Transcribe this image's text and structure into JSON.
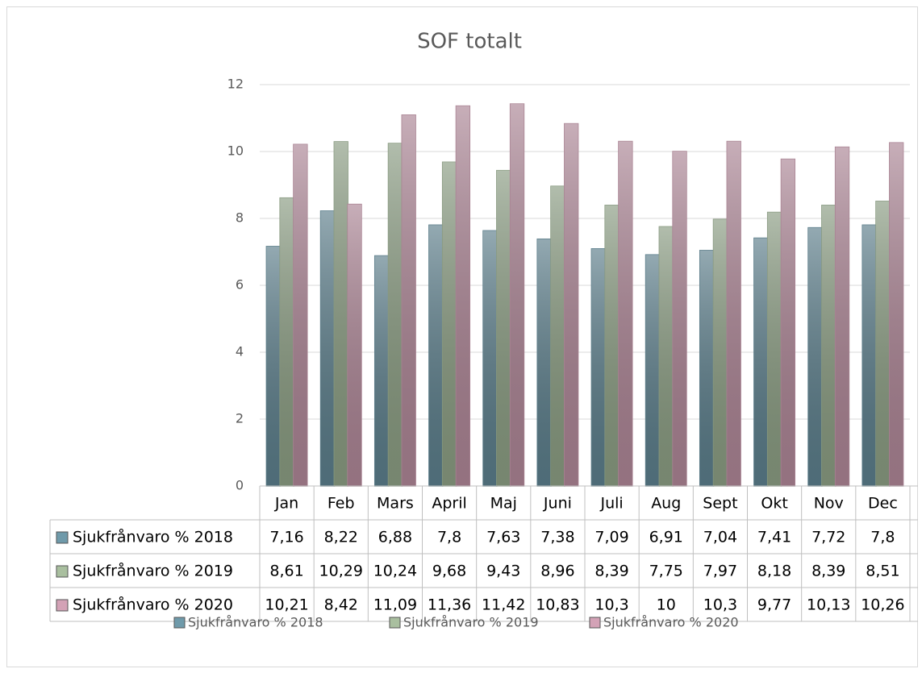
{
  "chart_data": {
    "type": "bar",
    "title": "SOF totalt",
    "categories": [
      "Jan",
      "Feb",
      "Mars",
      "April",
      "Maj",
      "Juni",
      "Juli",
      "Aug",
      "Sept",
      "Okt",
      "Nov",
      "Dec"
    ],
    "series": [
      {
        "name": "Sjukfrånvaro % 2018",
        "color": "#6f9aaa",
        "values": [
          7.16,
          8.22,
          6.88,
          7.8,
          7.63,
          7.38,
          7.09,
          6.91,
          7.04,
          7.41,
          7.72,
          7.8
        ],
        "value_labels": [
          "7,16",
          "8,22",
          "6,88",
          "7,8",
          "7,63",
          "7,38",
          "7,09",
          "6,91",
          "7,04",
          "7,41",
          "7,72",
          "7,8"
        ]
      },
      {
        "name": "Sjukfrånvaro % 2019",
        "color": "#a9bf9f",
        "values": [
          8.61,
          10.29,
          10.24,
          9.68,
          9.43,
          8.96,
          8.39,
          7.75,
          7.97,
          8.18,
          8.39,
          8.51
        ],
        "value_labels": [
          "8,61",
          "10,29",
          "10,24",
          "9,68",
          "9,43",
          "8,96",
          "8,39",
          "7,75",
          "7,97",
          "8,18",
          "8,39",
          "8,51"
        ]
      },
      {
        "name": "Sjukfrånvaro % 2020",
        "color": "#d3a2b6",
        "values": [
          10.21,
          8.42,
          11.09,
          11.36,
          11.42,
          10.83,
          10.3,
          10,
          10.3,
          9.77,
          10.13,
          10.26
        ],
        "value_labels": [
          "10,21",
          "8,42",
          "11,09",
          "11,36",
          "11,42",
          "10,83",
          "10,3",
          "10",
          "10,3",
          "9,77",
          "10,13",
          "10,26"
        ]
      }
    ],
    "ylim": [
      0,
      12
    ],
    "yticks": [
      0,
      2,
      4,
      6,
      8,
      10,
      12
    ],
    "grid": true,
    "legend": "bottom"
  }
}
